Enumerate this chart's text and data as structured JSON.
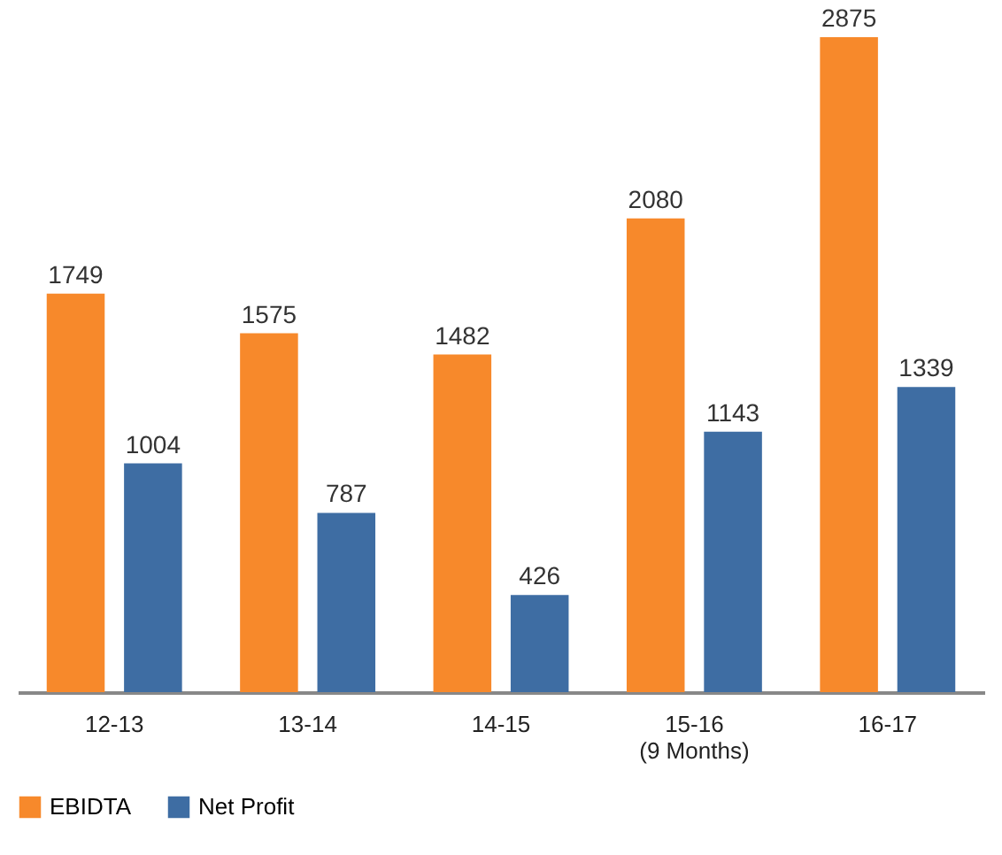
{
  "chart_data": {
    "type": "bar",
    "categories": [
      "12-13",
      "13-14",
      "14-15",
      "15-16\n(9 Months)",
      "16-17"
    ],
    "series": [
      {
        "name": "EBIDTA",
        "color": "#f7892b",
        "values": [
          1749,
          1575,
          1482,
          2080,
          2875
        ]
      },
      {
        "name": "Net Profit",
        "color": "#3e6da3",
        "values": [
          1004,
          787,
          426,
          1143,
          1339
        ]
      }
    ],
    "data_labels": true,
    "legend": "bottom left"
  }
}
